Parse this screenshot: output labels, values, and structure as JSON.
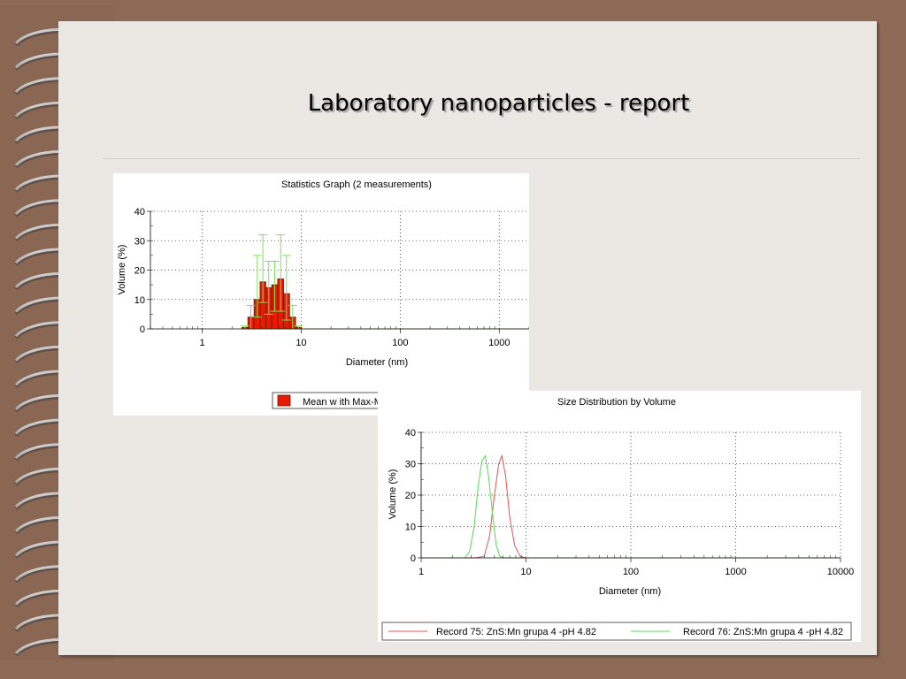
{
  "slide": {
    "title": "Laboratory nanoparticles - report"
  },
  "colors": {
    "background": "#8d6a55",
    "slide": "#ebe7e2",
    "bar_fill": "#e81a00",
    "bar_edge": "#6a1408",
    "error_bar": "#7ee05a",
    "record75": "#e85050",
    "record76": "#58d858"
  },
  "chart_data": [
    {
      "type": "bar",
      "title": "Statistics Graph (2 measurements)",
      "xlabel": "Diameter (nm)",
      "ylabel": "Volume (%)",
      "xscale": "log",
      "xlim": [
        0.3,
        2000
      ],
      "ylim": [
        0,
        40
      ],
      "x_ticks": [
        1,
        10,
        100,
        1000
      ],
      "y_ticks": [
        0,
        10,
        20,
        30,
        40
      ],
      "grid": true,
      "legend_position": "bottom-right",
      "series": [
        {
          "name": "Mean w ith Max-Min error bar",
          "bins": [
            2.7,
            3.1,
            3.6,
            4.1,
            4.7,
            5.4,
            6.2,
            7.1,
            8.2,
            9.4
          ],
          "values": [
            0.5,
            4,
            10,
            16,
            14,
            15,
            17,
            12,
            4,
            0.5
          ],
          "err_min": [
            0,
            0,
            4,
            9,
            5,
            6,
            6,
            3,
            0,
            0
          ],
          "err_max": [
            1,
            8,
            25,
            32,
            23,
            23,
            32,
            25,
            8,
            1
          ]
        }
      ]
    },
    {
      "type": "line",
      "title": "Size Distribution by Volume",
      "xlabel": "Diameter (nm)",
      "ylabel": "Volume (%)",
      "xscale": "log",
      "xlim": [
        1,
        10000
      ],
      "ylim": [
        0,
        40
      ],
      "x_ticks": [
        1,
        10,
        100,
        1000,
        10000
      ],
      "y_ticks": [
        0,
        10,
        20,
        30,
        40
      ],
      "grid": true,
      "legend_position": "bottom",
      "series": [
        {
          "name": "Record 75: ZnS:Mn grupa 4 -pH 4.82",
          "x": [
            1,
            3.3,
            4.0,
            4.5,
            5.0,
            5.5,
            5.9,
            6.4,
            7.0,
            7.8,
            8.8,
            10,
            10000
          ],
          "y": [
            0,
            0,
            0.5,
            7,
            20,
            30,
            32.5,
            26,
            13,
            4,
            0.5,
            0,
            0
          ]
        },
        {
          "name": "Record 76: ZnS:Mn grupa 4 -pH 4.82",
          "x": [
            1,
            2.6,
            2.9,
            3.2,
            3.5,
            3.8,
            4.1,
            4.4,
            4.8,
            5.2,
            5.6,
            6.2,
            10000
          ],
          "y": [
            0,
            0,
            2,
            10,
            23,
            31,
            32.5,
            26,
            14,
            4,
            0.5,
            0,
            0
          ]
        }
      ]
    }
  ]
}
